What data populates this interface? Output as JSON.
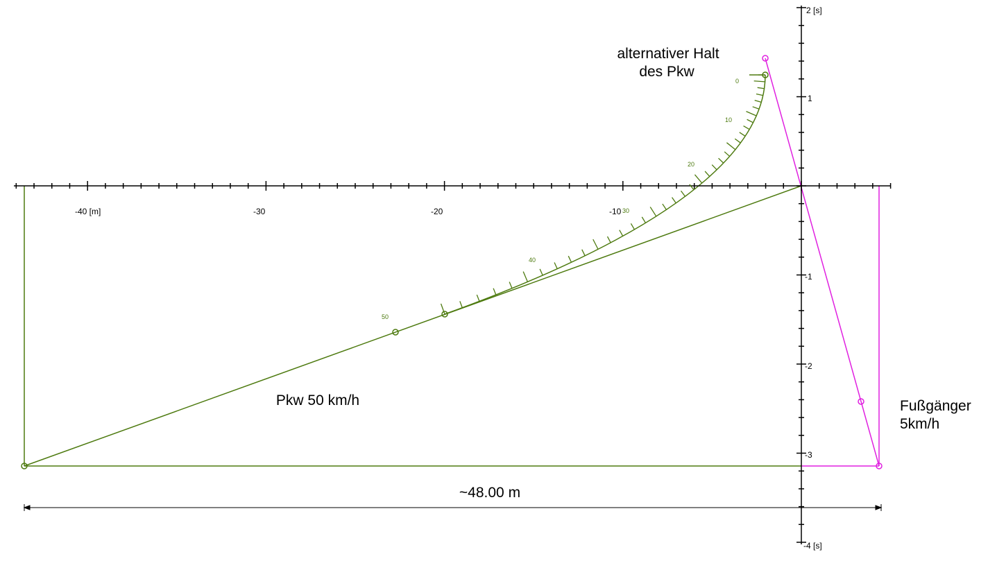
{
  "x_axis": {
    "labels": [
      "-40 [m]",
      "-30",
      "-20",
      "-10"
    ]
  },
  "t_axis": {
    "labels": [
      "2 [s]",
      "1",
      "-1",
      "-2",
      "-3",
      "-4 [s]"
    ]
  },
  "speed_scale": {
    "labels": [
      "0",
      "10",
      "20",
      "30",
      "40",
      "50"
    ]
  },
  "annotations": {
    "stop_line1": "alternativer Halt",
    "stop_line2": "des Pkw",
    "car": "Pkw 50 km/h",
    "ped_line1": "Fußgänger",
    "ped_line2": "5km/h",
    "distance": "~48.00 m"
  }
}
